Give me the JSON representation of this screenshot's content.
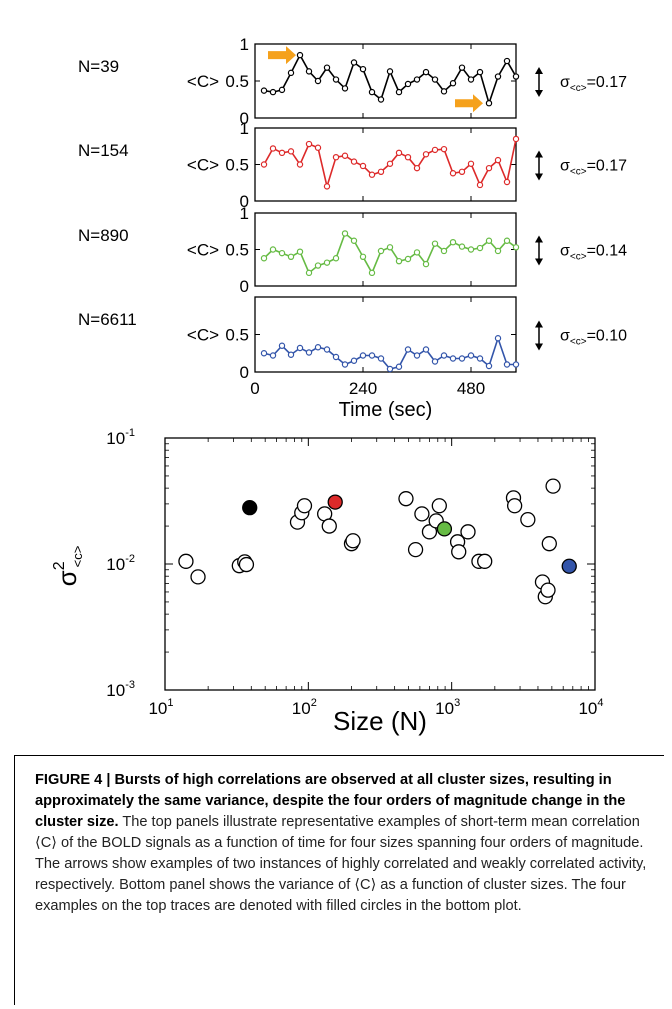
{
  "chart_data": [
    {
      "type": "line",
      "panel": "N=39",
      "label_left": "N=39",
      "ylabel": "<C>",
      "sigma_label": "σ",
      "sigma_sub": "<c>",
      "sigma_value": "=0.17",
      "color": "#000000",
      "ylim": [
        0,
        1
      ],
      "y_ticks": [
        "0",
        "0.5",
        "1"
      ],
      "x": [
        20,
        40,
        60,
        80,
        100,
        120,
        140,
        160,
        180,
        200,
        220,
        240,
        260,
        280,
        300,
        320,
        340,
        360,
        380,
        400,
        420,
        440,
        460,
        480,
        500,
        520,
        540,
        560,
        580
      ],
      "values": [
        0.37,
        0.35,
        0.38,
        0.61,
        0.85,
        0.63,
        0.5,
        0.68,
        0.52,
        0.4,
        0.75,
        0.66,
        0.35,
        0.25,
        0.63,
        0.35,
        0.46,
        0.52,
        0.62,
        0.52,
        0.36,
        0.47,
        0.68,
        0.52,
        0.62,
        0.2,
        0.56,
        0.77,
        0.56
      ],
      "annotations": [
        "high-correlation arrow near t=100",
        "low-correlation arrow near t=520"
      ]
    },
    {
      "type": "line",
      "panel": "N=154",
      "label_left": "N=154",
      "ylabel": "<C>",
      "sigma_label": "σ",
      "sigma_sub": "<c>",
      "sigma_value": "=0.17",
      "color": "#dd2a2a",
      "ylim": [
        0,
        1
      ],
      "y_ticks": [
        "0",
        "0.5",
        "1"
      ],
      "x": [
        20,
        40,
        60,
        80,
        100,
        120,
        140,
        160,
        180,
        200,
        220,
        240,
        260,
        280,
        300,
        320,
        340,
        360,
        380,
        400,
        420,
        440,
        460,
        480,
        500,
        520,
        540,
        560,
        580
      ],
      "values": [
        0.5,
        0.72,
        0.66,
        0.68,
        0.5,
        0.78,
        0.73,
        0.2,
        0.6,
        0.62,
        0.54,
        0.48,
        0.36,
        0.4,
        0.51,
        0.66,
        0.6,
        0.45,
        0.64,
        0.7,
        0.71,
        0.38,
        0.4,
        0.51,
        0.22,
        0.45,
        0.56,
        0.26,
        0.85
      ]
    },
    {
      "type": "line",
      "panel": "N=890",
      "label_left": "N=890",
      "ylabel": "<C>",
      "sigma_label": "σ",
      "sigma_sub": "<c>",
      "sigma_value": "=0.14",
      "color": "#66bb44",
      "ylim": [
        0,
        1
      ],
      "y_ticks": [
        "0",
        "0.5",
        "1"
      ],
      "x": [
        20,
        40,
        60,
        80,
        100,
        120,
        140,
        160,
        180,
        200,
        220,
        240,
        260,
        280,
        300,
        320,
        340,
        360,
        380,
        400,
        420,
        440,
        460,
        480,
        500,
        520,
        540,
        560,
        580
      ],
      "values": [
        0.38,
        0.5,
        0.45,
        0.4,
        0.47,
        0.18,
        0.28,
        0.32,
        0.38,
        0.72,
        0.62,
        0.4,
        0.18,
        0.48,
        0.53,
        0.34,
        0.37,
        0.46,
        0.3,
        0.58,
        0.48,
        0.6,
        0.54,
        0.5,
        0.52,
        0.62,
        0.48,
        0.62,
        0.53
      ]
    },
    {
      "type": "line",
      "panel": "N=6611",
      "label_left": "N=6611",
      "ylabel": "<C>",
      "sigma_label": "σ",
      "sigma_sub": "<c>",
      "sigma_value": "=0.10",
      "color": "#3355aa",
      "ylim": [
        0,
        1
      ],
      "y_ticks": [
        "0",
        "0.5"
      ],
      "x_ticks": [
        "0",
        "240",
        "480"
      ],
      "xlabel": "Time (sec)",
      "x": [
        20,
        40,
        60,
        80,
        100,
        120,
        140,
        160,
        180,
        200,
        220,
        240,
        260,
        280,
        300,
        320,
        340,
        360,
        380,
        400,
        420,
        440,
        460,
        480,
        500,
        520,
        540,
        560,
        580
      ],
      "values": [
        0.25,
        0.22,
        0.35,
        0.23,
        0.32,
        0.26,
        0.33,
        0.3,
        0.2,
        0.1,
        0.15,
        0.22,
        0.22,
        0.18,
        0.04,
        0.07,
        0.3,
        0.22,
        0.3,
        0.14,
        0.22,
        0.18,
        0.18,
        0.22,
        0.18,
        0.08,
        0.45,
        0.1,
        0.1
      ]
    },
    {
      "type": "scatter",
      "scale": "log-log",
      "xlabel": "Size (N)",
      "ylabel": "σ",
      "ylabel_sup": "2",
      "ylabel_sub": "<c>",
      "xlim": [
        10,
        10000
      ],
      "ylim": [
        0.001,
        0.1
      ],
      "x_ticks": [
        {
          "base": "10",
          "exp": "1"
        },
        {
          "base": "10",
          "exp": "2"
        },
        {
          "base": "10",
          "exp": "3"
        },
        {
          "base": "10",
          "exp": "4"
        }
      ],
      "y_ticks": [
        {
          "base": "10",
          "exp": "-1"
        },
        {
          "base": "10",
          "exp": "-2"
        },
        {
          "base": "10",
          "exp": "-3"
        }
      ],
      "points": [
        {
          "x": 14,
          "y": 0.0105,
          "fill": "none"
        },
        {
          "x": 17,
          "y": 0.0079,
          "fill": "none"
        },
        {
          "x": 33,
          "y": 0.0097,
          "fill": "none"
        },
        {
          "x": 36,
          "y": 0.0104,
          "fill": "none"
        },
        {
          "x": 37,
          "y": 0.0099,
          "fill": "none"
        },
        {
          "x": 39,
          "y": 0.028,
          "fill": "#000000"
        },
        {
          "x": 84,
          "y": 0.0215,
          "fill": "none"
        },
        {
          "x": 90,
          "y": 0.0255,
          "fill": "none"
        },
        {
          "x": 94,
          "y": 0.029,
          "fill": "none"
        },
        {
          "x": 130,
          "y": 0.025,
          "fill": "none"
        },
        {
          "x": 140,
          "y": 0.02,
          "fill": "none"
        },
        {
          "x": 154,
          "y": 0.031,
          "fill": "#dd2a2a"
        },
        {
          "x": 200,
          "y": 0.0145,
          "fill": "none"
        },
        {
          "x": 205,
          "y": 0.0153,
          "fill": "none"
        },
        {
          "x": 480,
          "y": 0.033,
          "fill": "none"
        },
        {
          "x": 560,
          "y": 0.013,
          "fill": "none"
        },
        {
          "x": 620,
          "y": 0.025,
          "fill": "none"
        },
        {
          "x": 700,
          "y": 0.018,
          "fill": "none"
        },
        {
          "x": 780,
          "y": 0.022,
          "fill": "none"
        },
        {
          "x": 820,
          "y": 0.029,
          "fill": "none"
        },
        {
          "x": 890,
          "y": 0.019,
          "fill": "#66bb44"
        },
        {
          "x": 1100,
          "y": 0.015,
          "fill": "none"
        },
        {
          "x": 1120,
          "y": 0.0125,
          "fill": "none"
        },
        {
          "x": 1300,
          "y": 0.018,
          "fill": "none"
        },
        {
          "x": 1550,
          "y": 0.0105,
          "fill": "none"
        },
        {
          "x": 1700,
          "y": 0.0105,
          "fill": "none"
        },
        {
          "x": 2700,
          "y": 0.0335,
          "fill": "none"
        },
        {
          "x": 2750,
          "y": 0.029,
          "fill": "none"
        },
        {
          "x": 3400,
          "y": 0.0225,
          "fill": "none"
        },
        {
          "x": 4300,
          "y": 0.0072,
          "fill": "none"
        },
        {
          "x": 4500,
          "y": 0.0055,
          "fill": "none"
        },
        {
          "x": 4700,
          "y": 0.0062,
          "fill": "none"
        },
        {
          "x": 4800,
          "y": 0.0145,
          "fill": "none"
        },
        {
          "x": 5100,
          "y": 0.0415,
          "fill": "none"
        },
        {
          "x": 6611,
          "y": 0.0096,
          "fill": "#3355aa"
        }
      ]
    }
  ],
  "caption": {
    "bold": "FIGURE 4 | Bursts of high correlations are observed at all cluster sizes, resulting in approximately the same variance, despite the four orders of magnitude change in the cluster size.",
    "text": " The top panels illustrate representative examples of short-term mean correlation ⟨C⟩ of the BOLD signals as a function of time for four sizes spanning four orders of magnitude. The arrows show examples of two instances of highly correlated and weakly correlated activity, respectively. Bottom panel shows the variance of ⟨C⟩ as a function of cluster sizes. The four examples on the top traces are denoted with filled circles in the bottom plot."
  },
  "colors": {
    "arrow": "#f5a11c",
    "caption_text": "#222222"
  }
}
